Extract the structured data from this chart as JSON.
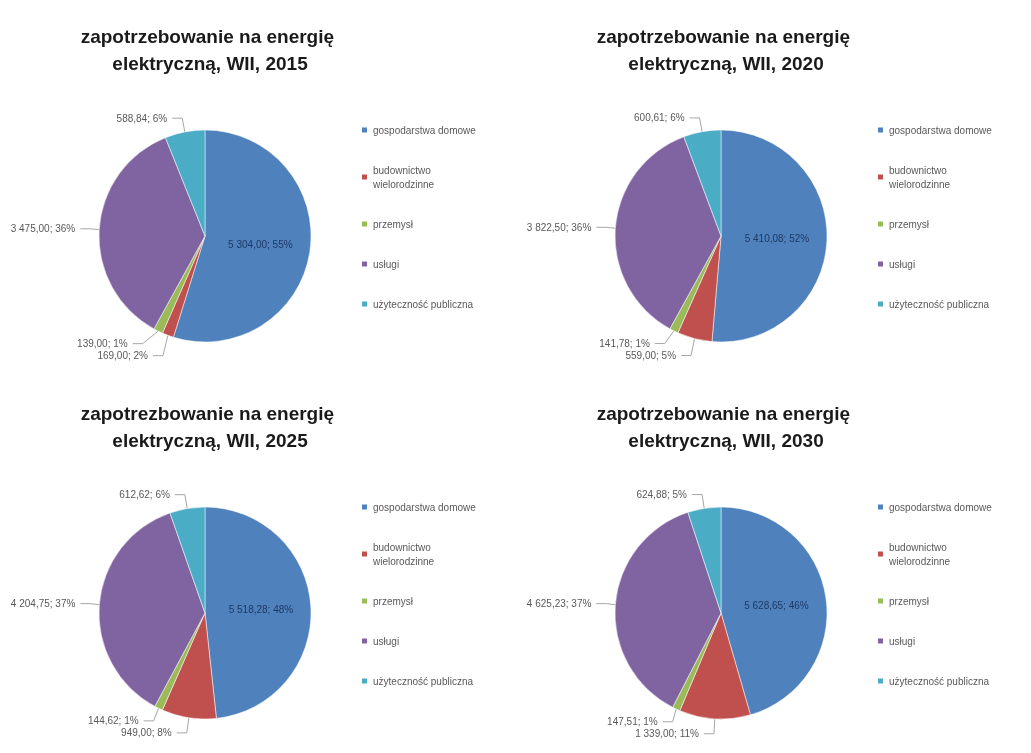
{
  "chart_data": [
    {
      "type": "pie",
      "title": "zapotrzebowanie na energię elektryczną, WII, 2015",
      "categories": [
        "gospodarstwa domowe",
        "budownictwo wielorodzinne",
        "przemysł",
        "usługi",
        "użyteczność publiczna"
      ],
      "values": [
        5304.0,
        169.0,
        139.0,
        3475.0,
        588.84
      ],
      "colors": [
        "#4f81bd",
        "#c0504d",
        "#9bbb59",
        "#8064a2",
        "#4bacc6"
      ],
      "value_labels": [
        "5 304,00; 55%",
        "169,00; 2%",
        "139,00; 1%",
        "3 475,00; 36%",
        "588,84; 6%"
      ],
      "legend": "right"
    },
    {
      "type": "pie",
      "title": "zapotrzebowanie na energię elektryczną, WII, 2020",
      "categories": [
        "gospodarstwa domowe",
        "budownictwo wielorodzinne",
        "przemysł",
        "usługi",
        "użyteczność publiczna"
      ],
      "values": [
        5410.08,
        559.0,
        141.78,
        3822.5,
        600.61
      ],
      "colors": [
        "#4f81bd",
        "#c0504d",
        "#9bbb59",
        "#8064a2",
        "#4bacc6"
      ],
      "value_labels": [
        "5 410,08; 52%",
        "559,00; 5%",
        "141,78; 1%",
        "3 822,50; 36%",
        "600,61; 6%"
      ],
      "legend": "right"
    },
    {
      "type": "pie",
      "title": "zapotrezbowanie na energię elektryczną, WII, 2025",
      "categories": [
        "gospodarstwa domowe",
        "budownictwo wielorodzinne",
        "przemysł",
        "usługi",
        "użyteczność publiczna"
      ],
      "values": [
        5518.28,
        949.0,
        144.62,
        4204.75,
        612.62
      ],
      "colors": [
        "#4f81bd",
        "#c0504d",
        "#9bbb59",
        "#8064a2",
        "#4bacc6"
      ],
      "value_labels": [
        "5 518,28; 48%",
        "949,00; 8%",
        "144,62; 1%",
        "4 204,75; 37%",
        "612,62; 6%"
      ],
      "legend": "right"
    },
    {
      "type": "pie",
      "title": "zapotrzebowanie na energię elektryczną, WII, 2030",
      "categories": [
        "gospodarstwa domowe",
        "budownictwo wielorodzinne",
        "przemysł",
        "usługi",
        "użyteczność publiczna"
      ],
      "values": [
        5628.65,
        1339.0,
        147.51,
        4625.23,
        624.88
      ],
      "colors": [
        "#4f81bd",
        "#c0504d",
        "#9bbb59",
        "#8064a2",
        "#4bacc6"
      ],
      "value_labels": [
        "5 628,65; 46%",
        "1 339,00; 11%",
        "147,51; 1%",
        "4 625,23; 37%",
        "624,88; 5%"
      ],
      "legend": "right"
    }
  ]
}
